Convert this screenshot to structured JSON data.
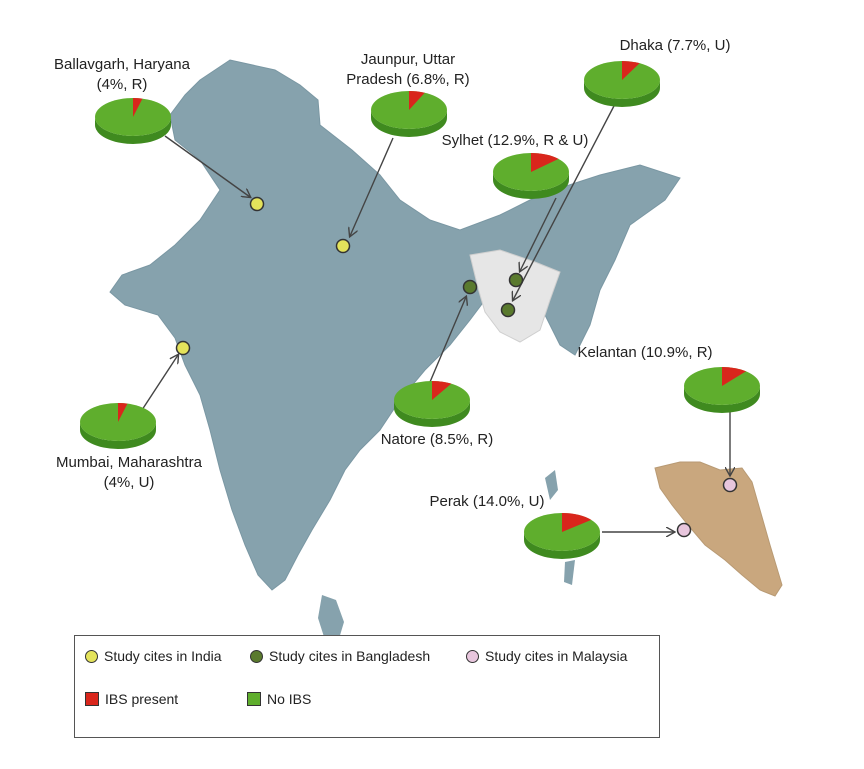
{
  "colors": {
    "india_marker": "#e4e35b",
    "bangladesh_marker": "#5a7a2e",
    "malaysia_marker": "#e8c6dd",
    "ibs_present": "#d9261c",
    "no_ibs": "#5fae2d",
    "india_land": "#86a2ad",
    "bangladesh_land": "#e6e6e6",
    "malaysia_land": "#c9a77e"
  },
  "chart_data": {
    "type": "pie",
    "title": "",
    "series_labels": [
      "IBS present",
      "No IBS"
    ],
    "sites": [
      {
        "id": "ballavgarh",
        "label_lines": [
          "Ballavgarh, Haryana",
          "(4%, R)"
        ],
        "country": "India",
        "ibs_percent": 4
      },
      {
        "id": "jaunpur",
        "label_lines": [
          "Jaunpur, Uttar",
          "Pradesh (6.8%, R)"
        ],
        "country": "India",
        "ibs_percent": 6.8
      },
      {
        "id": "dhaka",
        "label_lines": [
          "Dhaka (7.7%, U)"
        ],
        "country": "Bangladesh",
        "ibs_percent": 7.7
      },
      {
        "id": "sylhet",
        "label_lines": [
          "Sylhet (12.9%, R & U)"
        ],
        "country": "Bangladesh",
        "ibs_percent": 12.9
      },
      {
        "id": "mumbai",
        "label_lines": [
          "Mumbai, Maharashtra",
          "(4%, U)"
        ],
        "country": "India",
        "ibs_percent": 4
      },
      {
        "id": "natore",
        "label_lines": [
          "Natore (8.5%, R)"
        ],
        "country": "Bangladesh",
        "ibs_percent": 8.5
      },
      {
        "id": "kelantan",
        "label_lines": [
          "Kelantan (10.9%, R)"
        ],
        "country": "Malaysia",
        "ibs_percent": 10.9
      },
      {
        "id": "perak",
        "label_lines": [
          "Perak (14.0%, U)"
        ],
        "country": "Malaysia",
        "ibs_percent": 14.0
      }
    ]
  },
  "legend": {
    "india": "Study cites in India",
    "bangladesh": "Study cites in Bangladesh",
    "malaysia": "Study cites in Malaysia",
    "ibs_present": "IBS present",
    "no_ibs": "No IBS"
  }
}
